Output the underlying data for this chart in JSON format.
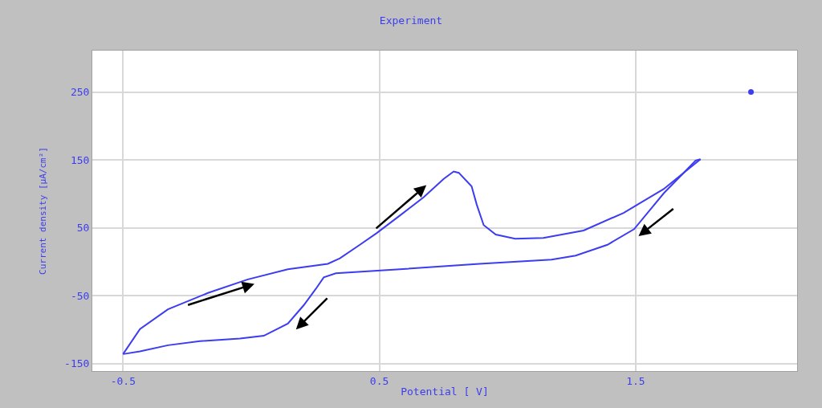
{
  "chart_data": {
    "type": "line",
    "title": "Experiment",
    "xlabel": "Potential [ V]",
    "ylabel": "Current density [µA/cm²]",
    "xlim": [
      -0.62,
      2.13
    ],
    "ylim": [
      -161,
      311
    ],
    "xticks": [
      -0.5,
      0.5,
      1.5
    ],
    "yticks": [
      -150,
      -50,
      50,
      150,
      250
    ],
    "grid": true,
    "legend": false,
    "marker": "none",
    "line_style": "solid",
    "series": [
      {
        "color": "#3c3cf0",
        "x": [
          -0.5,
          -0.434,
          -0.325,
          -0.169,
          -0.013,
          0.143,
          0.299,
          0.346,
          0.424,
          0.489,
          0.58,
          0.673,
          0.751,
          0.79,
          0.81,
          0.86,
          0.88,
          0.907,
          0.954,
          1.03,
          1.14,
          1.297,
          1.453,
          1.609,
          1.753
        ],
        "values": [
          -136,
          -99,
          -70,
          -46,
          -26,
          -11,
          -3,
          5,
          25,
          42,
          68,
          95,
          122,
          133,
          131,
          111,
          84,
          54,
          40,
          34,
          35,
          46,
          72,
          107,
          151
        ]
      },
      {
        "color": "#3c3cf0",
        "x": [
          1.753,
          1.734,
          1.61,
          1.494,
          1.39,
          1.266,
          1.172,
          0.89,
          0.58,
          0.33,
          0.283,
          0.252,
          0.205,
          0.143,
          0.049,
          -0.044,
          -0.2,
          -0.325,
          -0.434,
          -0.5
        ],
        "values": [
          151,
          149,
          101,
          48,
          25,
          9,
          3,
          -3,
          -11,
          -17,
          -23,
          -40,
          -64,
          -91,
          -109,
          -113,
          -117,
          -123,
          -132,
          -136
        ]
      },
      {
        "type": "scatter",
        "color": "#3c3cf0",
        "x": [
          1.95
        ],
        "values": [
          250
        ]
      }
    ]
  }
}
